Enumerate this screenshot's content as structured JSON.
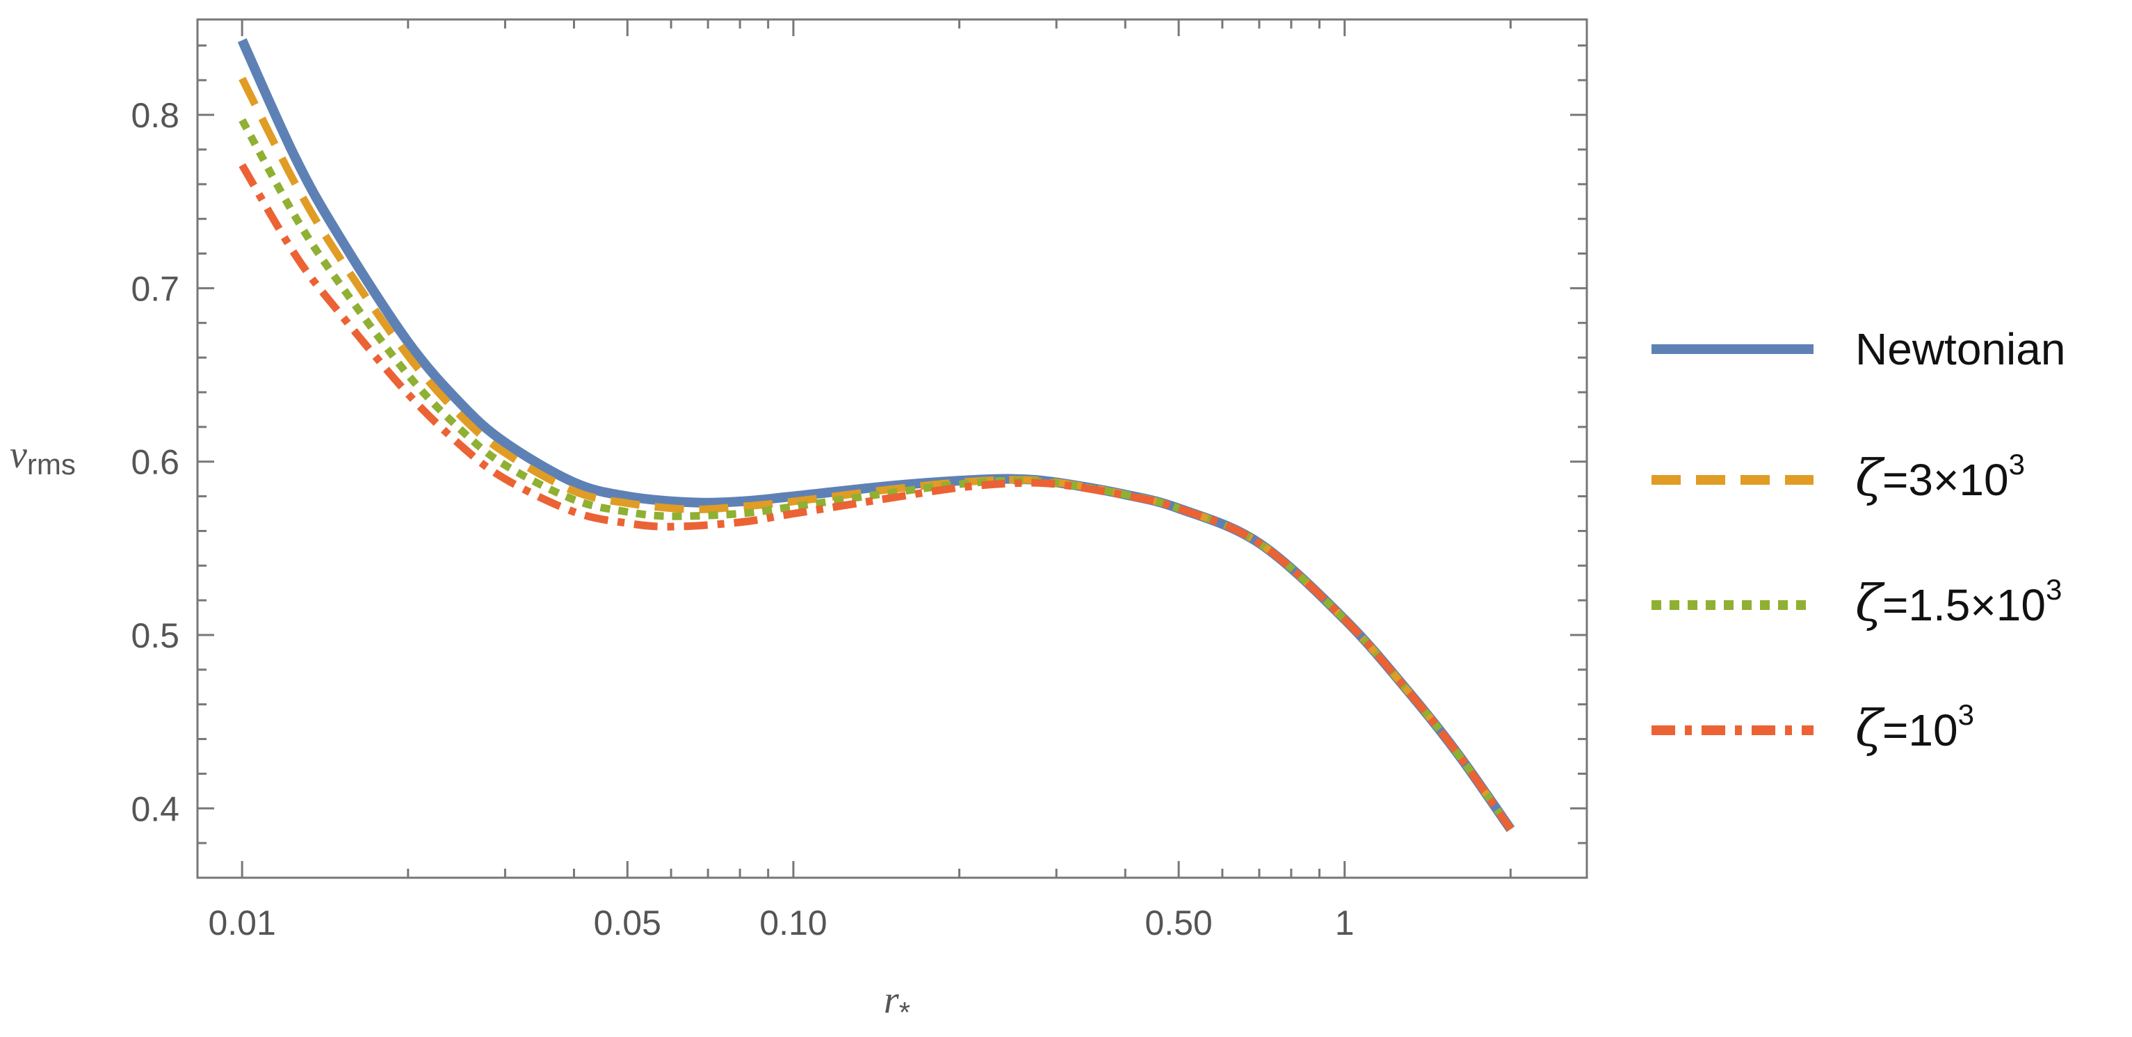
{
  "chart_data": {
    "type": "line",
    "xscale": "log",
    "xlim": [
      0.0083,
      2.75
    ],
    "ylim": [
      0.36,
      0.855
    ],
    "xlabel": {
      "main": "r",
      "sub": "*"
    },
    "ylabel": {
      "main": "v",
      "sub": "rms"
    },
    "xticks": [
      {
        "value": 0.01,
        "label": "0.01"
      },
      {
        "value": 0.05,
        "label": "0.05"
      },
      {
        "value": 0.1,
        "label": "0.10"
      },
      {
        "value": 0.5,
        "label": "0.50"
      },
      {
        "value": 1,
        "label": "1"
      }
    ],
    "yticks": [
      {
        "value": 0.4,
        "label": "0.4"
      },
      {
        "value": 0.5,
        "label": "0.5"
      },
      {
        "value": 0.6,
        "label": "0.6"
      },
      {
        "value": 0.7,
        "label": "0.7"
      },
      {
        "value": 0.8,
        "label": "0.8"
      }
    ],
    "legend_position": "right",
    "series": [
      {
        "name": "Newtonian",
        "legend": {
          "prefix": "Newtonian",
          "exp": ""
        },
        "color": "#5E81B5",
        "style": "solid",
        "points": [
          [
            0.01,
            0.843
          ],
          [
            0.0125,
            0.775
          ],
          [
            0.015,
            0.73
          ],
          [
            0.02,
            0.669
          ],
          [
            0.025,
            0.633
          ],
          [
            0.03,
            0.611
          ],
          [
            0.04,
            0.588
          ],
          [
            0.05,
            0.58
          ],
          [
            0.065,
            0.5765
          ],
          [
            0.08,
            0.577
          ],
          [
            0.1,
            0.58
          ],
          [
            0.15,
            0.586
          ],
          [
            0.2,
            0.589
          ],
          [
            0.25,
            0.59
          ],
          [
            0.3,
            0.588
          ],
          [
            0.4,
            0.581
          ],
          [
            0.5,
            0.573
          ],
          [
            0.7,
            0.553
          ],
          [
            1.0,
            0.509
          ],
          [
            1.3,
            0.468
          ],
          [
            1.6,
            0.432
          ],
          [
            2.0,
            0.388
          ]
        ]
      },
      {
        "name": "ζ=3×10³",
        "legend": {
          "prefix": "ζ=3×10",
          "exp": "3"
        },
        "color": "#E09C24",
        "style": "dashed",
        "points": [
          [
            0.01,
            0.821
          ],
          [
            0.0125,
            0.76
          ],
          [
            0.015,
            0.718
          ],
          [
            0.02,
            0.661
          ],
          [
            0.025,
            0.626
          ],
          [
            0.03,
            0.605
          ],
          [
            0.04,
            0.583
          ],
          [
            0.05,
            0.576
          ],
          [
            0.065,
            0.5725
          ],
          [
            0.08,
            0.574
          ],
          [
            0.1,
            0.577
          ],
          [
            0.15,
            0.584
          ],
          [
            0.2,
            0.588
          ],
          [
            0.25,
            0.5895
          ],
          [
            0.3,
            0.588
          ],
          [
            0.4,
            0.581
          ],
          [
            0.5,
            0.573
          ],
          [
            0.7,
            0.553
          ],
          [
            1.0,
            0.509
          ],
          [
            1.3,
            0.468
          ],
          [
            1.6,
            0.432
          ],
          [
            2.0,
            0.388
          ]
        ]
      },
      {
        "name": "ζ=1.5×10³",
        "legend": {
          "prefix": "ζ=1.5×10",
          "exp": "3"
        },
        "color": "#8FB032",
        "style": "dotted",
        "points": [
          [
            0.01,
            0.797
          ],
          [
            0.0125,
            0.741
          ],
          [
            0.015,
            0.703
          ],
          [
            0.02,
            0.65
          ],
          [
            0.025,
            0.618
          ],
          [
            0.03,
            0.598
          ],
          [
            0.04,
            0.578
          ],
          [
            0.05,
            0.571
          ],
          [
            0.06,
            0.5685
          ],
          [
            0.08,
            0.57
          ],
          [
            0.1,
            0.574
          ],
          [
            0.15,
            0.582
          ],
          [
            0.2,
            0.587
          ],
          [
            0.25,
            0.589
          ],
          [
            0.3,
            0.5875
          ],
          [
            0.4,
            0.581
          ],
          [
            0.5,
            0.573
          ],
          [
            0.7,
            0.553
          ],
          [
            1.0,
            0.509
          ],
          [
            1.3,
            0.468
          ],
          [
            1.6,
            0.432
          ],
          [
            2.0,
            0.388
          ]
        ]
      },
      {
        "name": "ζ=10³",
        "legend": {
          "prefix": "ζ=10",
          "exp": "3"
        },
        "color": "#EB6235",
        "style": "dashdot",
        "points": [
          [
            0.01,
            0.771
          ],
          [
            0.0125,
            0.719
          ],
          [
            0.015,
            0.686
          ],
          [
            0.02,
            0.639
          ],
          [
            0.025,
            0.609
          ],
          [
            0.03,
            0.59
          ],
          [
            0.04,
            0.571
          ],
          [
            0.05,
            0.5645
          ],
          [
            0.06,
            0.5625
          ],
          [
            0.08,
            0.565
          ],
          [
            0.1,
            0.57
          ],
          [
            0.15,
            0.579
          ],
          [
            0.2,
            0.585
          ],
          [
            0.25,
            0.5875
          ],
          [
            0.3,
            0.587
          ],
          [
            0.4,
            0.5805
          ],
          [
            0.5,
            0.573
          ],
          [
            0.7,
            0.553
          ],
          [
            1.0,
            0.509
          ],
          [
            1.3,
            0.468
          ],
          [
            1.6,
            0.432
          ],
          [
            2.0,
            0.388
          ]
        ]
      }
    ]
  }
}
